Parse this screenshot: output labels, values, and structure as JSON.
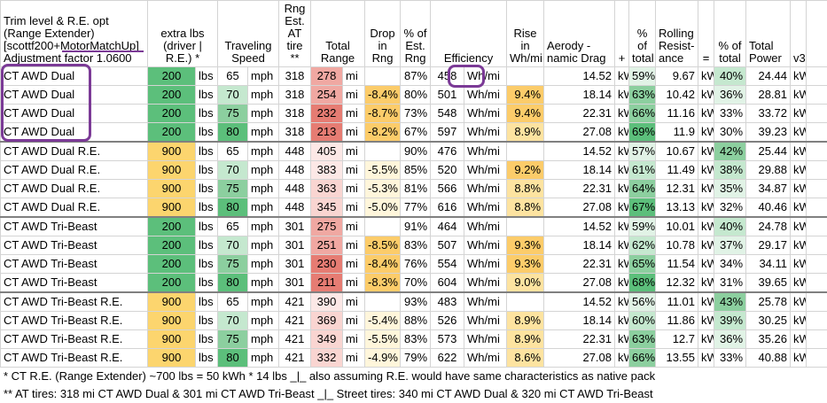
{
  "header": {
    "trim_lines": [
      "Trim level & R.E. opt",
      "(Range Extender)",
      "[scottf200+MotorMatchUp]",
      "Adjustment factor 1.0600"
    ],
    "extra_lbs": "extra lbs (driver | R.E.) *",
    "traveling_speed": "Traveling Speed",
    "rng_est": "Rng Est. AT tire **",
    "total_range": "Total Range",
    "drop_in_rng": "Drop in Rng",
    "pct_est_rng": "% of Est. Rng",
    "efficiency": "Efficiency",
    "rise_in_whmi": "Rise in Wh/mi",
    "aero_drag": "Aerody -namic Drag",
    "plus": "+",
    "pct_total_1": "% of total",
    "rolling_resistance": "Rolling Resist- ance",
    "equals": "=",
    "pct_total_2": "% of total",
    "total_power": "Total Power",
    "v3": "v3"
  },
  "units": {
    "lbs": "lbs",
    "mph": "mph",
    "mi": "mi",
    "whmi": "Wh/mi",
    "kw": "kW"
  },
  "colors": {
    "green_dark": "#5cbf7b",
    "green_mid": "#8ccf9f",
    "green_light": "#c5e8cf",
    "green_pale": "#e1f3e6",
    "yellow": "#fcd56e",
    "red_dark": "#e67c73",
    "red_mid": "#f0a8a2",
    "red_light": "#f9d5d1",
    "red_pale": "#fce8e6",
    "annotation": "#7b3a96"
  },
  "rows": [
    {
      "trim": "CT AWD Dual",
      "lbs": "200",
      "speed": "65",
      "rng": "318",
      "range": "278",
      "drop": "",
      "pct": "87%",
      "eff": "458",
      "rise": "",
      "aero": "14.52",
      "pct1": "59%",
      "roll": "9.67",
      "pct2": "40%",
      "power": "24.44"
    },
    {
      "trim": "CT AWD Dual",
      "lbs": "200",
      "speed": "70",
      "rng": "318",
      "range": "254",
      "drop": "-8.4%",
      "pct": "80%",
      "eff": "501",
      "rise": "9.4%",
      "aero": "18.14",
      "pct1": "63%",
      "roll": "10.42",
      "pct2": "36%",
      "power": "28.81"
    },
    {
      "trim": "CT AWD Dual",
      "lbs": "200",
      "speed": "75",
      "rng": "318",
      "range": "232",
      "drop": "-8.7%",
      "pct": "73%",
      "eff": "548",
      "rise": "9.4%",
      "aero": "22.31",
      "pct1": "66%",
      "roll": "11.16",
      "pct2": "33%",
      "power": "33.72"
    },
    {
      "trim": "CT AWD Dual",
      "lbs": "200",
      "speed": "80",
      "rng": "318",
      "range": "213",
      "drop": "-8.2%",
      "pct": "67%",
      "eff": "597",
      "rise": "8.9%",
      "aero": "27.08",
      "pct1": "69%",
      "roll": "11.9",
      "pct2": "30%",
      "power": "39.23"
    },
    {
      "trim": "CT AWD Dual R.E.",
      "lbs": "900",
      "speed": "65",
      "rng": "448",
      "range": "405",
      "drop": "",
      "pct": "90%",
      "eff": "476",
      "rise": "",
      "aero": "14.52",
      "pct1": "57%",
      "roll": "10.67",
      "pct2": "42%",
      "power": "25.44"
    },
    {
      "trim": "CT AWD Dual R.E.",
      "lbs": "900",
      "speed": "70",
      "rng": "448",
      "range": "383",
      "drop": "-5.5%",
      "pct": "85%",
      "eff": "520",
      "rise": "9.2%",
      "aero": "18.14",
      "pct1": "61%",
      "roll": "11.49",
      "pct2": "38%",
      "power": "29.88"
    },
    {
      "trim": "CT AWD Dual R.E.",
      "lbs": "900",
      "speed": "75",
      "rng": "448",
      "range": "363",
      "drop": "-5.3%",
      "pct": "81%",
      "eff": "566",
      "rise": "8.8%",
      "aero": "22.31",
      "pct1": "64%",
      "roll": "12.31",
      "pct2": "35%",
      "power": "34.87"
    },
    {
      "trim": "CT AWD Dual R.E.",
      "lbs": "900",
      "speed": "80",
      "rng": "448",
      "range": "345",
      "drop": "-5.0%",
      "pct": "77%",
      "eff": "616",
      "rise": "8.8%",
      "aero": "27.08",
      "pct1": "67%",
      "roll": "13.13",
      "pct2": "32%",
      "power": "40.46"
    },
    {
      "trim": "CT AWD Tri-Beast",
      "lbs": "200",
      "speed": "65",
      "rng": "301",
      "range": "275",
      "drop": "",
      "pct": "91%",
      "eff": "464",
      "rise": "",
      "aero": "14.52",
      "pct1": "59%",
      "roll": "10.01",
      "pct2": "40%",
      "power": "24.78"
    },
    {
      "trim": "CT AWD Tri-Beast",
      "lbs": "200",
      "speed": "70",
      "rng": "301",
      "range": "251",
      "drop": "-8.5%",
      "pct": "83%",
      "eff": "507",
      "rise": "9.3%",
      "aero": "18.14",
      "pct1": "62%",
      "roll": "10.78",
      "pct2": "37%",
      "power": "29.17"
    },
    {
      "trim": "CT AWD Tri-Beast",
      "lbs": "200",
      "speed": "75",
      "rng": "301",
      "range": "230",
      "drop": "-8.4%",
      "pct": "76%",
      "eff": "554",
      "rise": "9.3%",
      "aero": "22.31",
      "pct1": "65%",
      "roll": "11.54",
      "pct2": "34%",
      "power": "34.11"
    },
    {
      "trim": "CT AWD Tri-Beast",
      "lbs": "200",
      "speed": "80",
      "rng": "301",
      "range": "211",
      "drop": "-8.3%",
      "pct": "70%",
      "eff": "604",
      "rise": "9.0%",
      "aero": "27.08",
      "pct1": "68%",
      "roll": "12.32",
      "pct2": "31%",
      "power": "39.65"
    },
    {
      "trim": "CT AWD Tri-Beast R.E.",
      "lbs": "900",
      "speed": "65",
      "rng": "421",
      "range": "390",
      "drop": "",
      "pct": "93%",
      "eff": "483",
      "rise": "",
      "aero": "14.52",
      "pct1": "56%",
      "roll": "11.01",
      "pct2": "43%",
      "power": "25.78"
    },
    {
      "trim": "CT AWD Tri-Beast R.E.",
      "lbs": "900",
      "speed": "70",
      "rng": "421",
      "range": "369",
      "drop": "-5.4%",
      "pct": "88%",
      "eff": "526",
      "rise": "8.9%",
      "aero": "18.14",
      "pct1": "60%",
      "roll": "11.86",
      "pct2": "39%",
      "power": "30.25"
    },
    {
      "trim": "CT AWD Tri-Beast R.E.",
      "lbs": "900",
      "speed": "75",
      "rng": "421",
      "range": "349",
      "drop": "-5.5%",
      "pct": "83%",
      "eff": "573",
      "rise": "8.9%",
      "aero": "22.31",
      "pct1": "63%",
      "roll": "12.7",
      "pct2": "36%",
      "power": "35.26"
    },
    {
      "trim": "CT AWD Tri-Beast R.E.",
      "lbs": "900",
      "speed": "80",
      "rng": "421",
      "range": "332",
      "drop": "-4.9%",
      "pct": "79%",
      "eff": "622",
      "rise": "8.6%",
      "aero": "27.08",
      "pct1": "66%",
      "roll": "13.55",
      "pct2": "33%",
      "power": "40.88"
    }
  ],
  "footnotes": [
    "* CT R.E. (Range Extender) ~700 lbs = 50 kWh * 14 lbs _|_ also assuming R.E. would have same characteristics as native pack",
    "** AT tires: 318 mi CT AWD Dual & 301 mi CT AWD Tri-Beast _|_ Street tires: 340 mi CT AWD Dual & 320 mi CT AWD Tri-Beast"
  ]
}
